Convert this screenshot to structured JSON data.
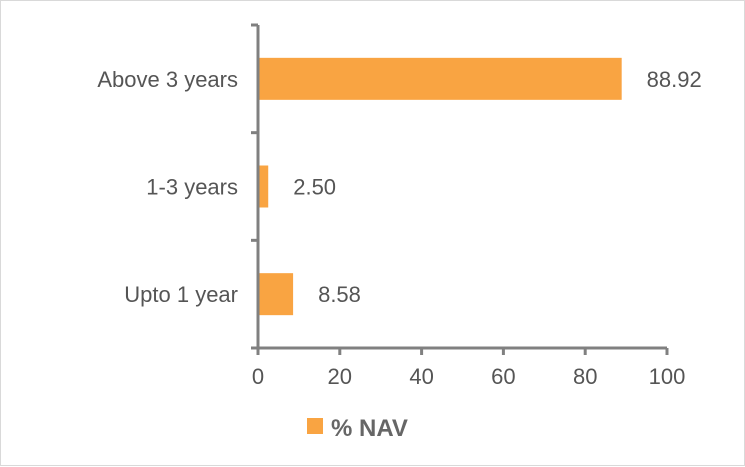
{
  "chart_data": {
    "type": "bar",
    "orientation": "horizontal",
    "categories": [
      "Above 3 years",
      "1-3 years",
      "Upto 1 year"
    ],
    "series": [
      {
        "name": "% NAV",
        "values": [
          88.92,
          2.5,
          8.58
        ],
        "labels": [
          "88.92",
          "2.50",
          "8.58"
        ],
        "color": "#F9A442"
      }
    ],
    "xlim": [
      0,
      100
    ],
    "xticks": [
      0,
      20,
      40,
      60,
      80,
      100
    ],
    "grid": false,
    "legend_position": "bottom"
  },
  "legend": {
    "label": "% NAV",
    "color": "#F9A442"
  },
  "colors": {
    "axis": "#808080",
    "text": "#555555"
  }
}
